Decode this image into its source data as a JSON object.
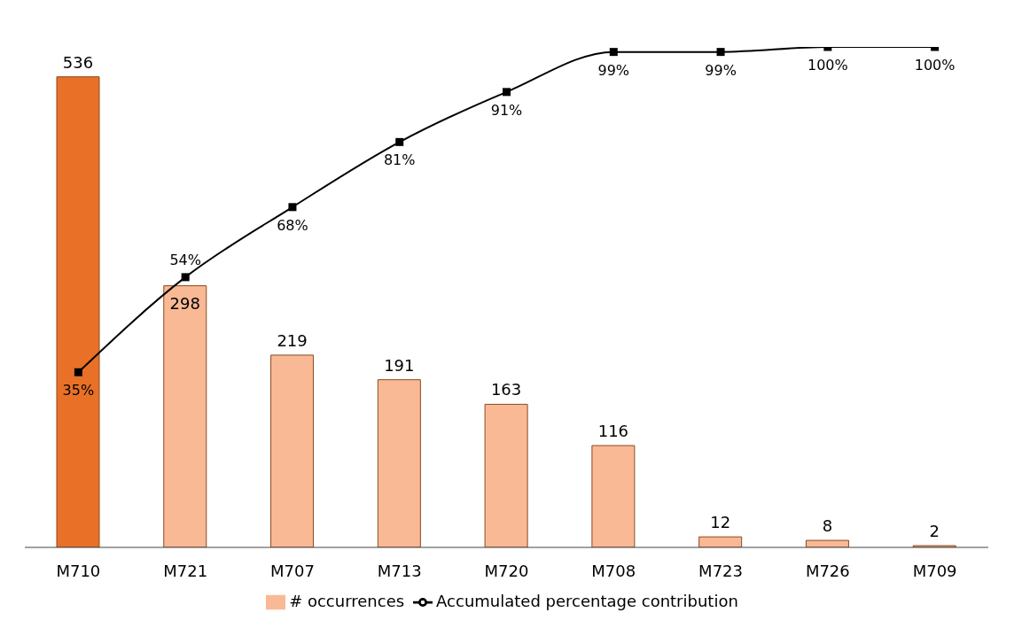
{
  "chart_data": {
    "type": "bar",
    "categories": [
      "M710",
      "M721",
      "M707",
      "M713",
      "M720",
      "M708",
      "M723",
      "M726",
      "M709"
    ],
    "series": [
      {
        "name": "# occurrences",
        "color": "#f9b994",
        "colors": [
          "#e87127",
          "#f9b994",
          "#f9b994",
          "#f9b994",
          "#f9b994",
          "#f9b994",
          "#f9b994",
          "#f9b994",
          "#f9b994"
        ],
        "values": [
          536,
          298,
          219,
          191,
          163,
          116,
          12,
          8,
          2
        ]
      },
      {
        "name": "Accumulated percentage contribution",
        "type": "line",
        "axis": "y2",
        "color": "#000000",
        "values": [
          35,
          54,
          68,
          81,
          91,
          99,
          99,
          100,
          100
        ],
        "value_labels": [
          "35%",
          "54%",
          "68%",
          "81%",
          "91%",
          "99%",
          "99%",
          "100%",
          "100%"
        ]
      }
    ],
    "ylim": [
      0,
      570
    ],
    "y2lim": [
      0,
      100
    ],
    "tick_labels": "x",
    "data_labels": true,
    "legend": "bottom",
    "marker": "square",
    "line_style": "solid",
    "grid": false
  }
}
